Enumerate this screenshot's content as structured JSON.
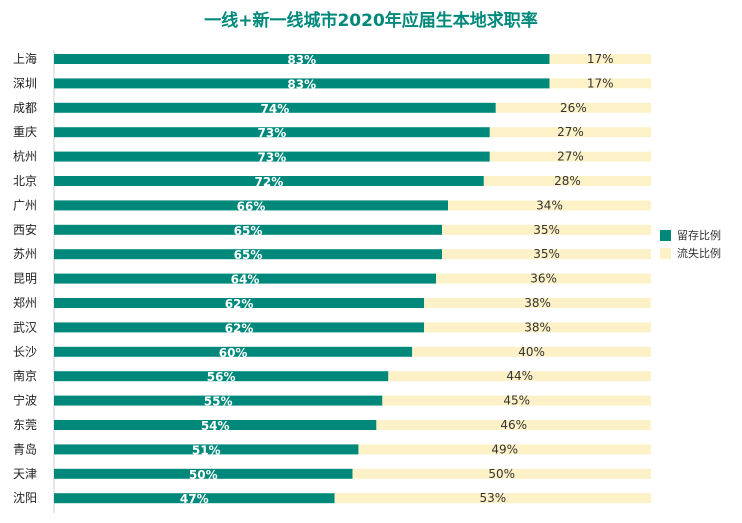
{
  "chart_data": {
    "type": "bar",
    "orientation": "horizontal",
    "stacked": true,
    "title": "一线+新一线城市2020年应届生本地求职率",
    "categories": [
      "上海",
      "深圳",
      "成都",
      "重庆",
      "杭州",
      "北京",
      "广州",
      "西安",
      "苏州",
      "昆明",
      "郑州",
      "武汉",
      "长沙",
      "南京",
      "宁波",
      "东莞",
      "青岛",
      "天津",
      "沈阳"
    ],
    "series": [
      {
        "name": "留存比例",
        "color": "#00897b",
        "values": [
          83,
          83,
          74,
          73,
          73,
          72,
          66,
          65,
          65,
          64,
          62,
          62,
          60,
          56,
          55,
          54,
          51,
          50,
          47
        ],
        "labels": [
          "83%",
          "83%",
          "74%",
          "73%",
          "73%",
          "72%",
          "66%",
          "65%",
          "65%",
          "64%",
          "62%",
          "62%",
          "60%",
          "56%",
          "55%",
          "54%",
          "51%",
          "50%",
          "47%"
        ]
      },
      {
        "name": "流失比例",
        "color": "#fdf2c7",
        "values": [
          17,
          17,
          26,
          27,
          27,
          28,
          34,
          35,
          35,
          36,
          38,
          38,
          40,
          44,
          45,
          46,
          49,
          50,
          53
        ],
        "labels": [
          "17%",
          "17%",
          "26%",
          "27%",
          "27%",
          "28%",
          "34%",
          "35%",
          "35%",
          "36%",
          "38%",
          "38%",
          "40%",
          "44%",
          "45%",
          "46%",
          "49%",
          "50%",
          "53%"
        ]
      }
    ],
    "xlim": [
      0,
      100
    ],
    "legend_position": "right",
    "grid": false
  }
}
